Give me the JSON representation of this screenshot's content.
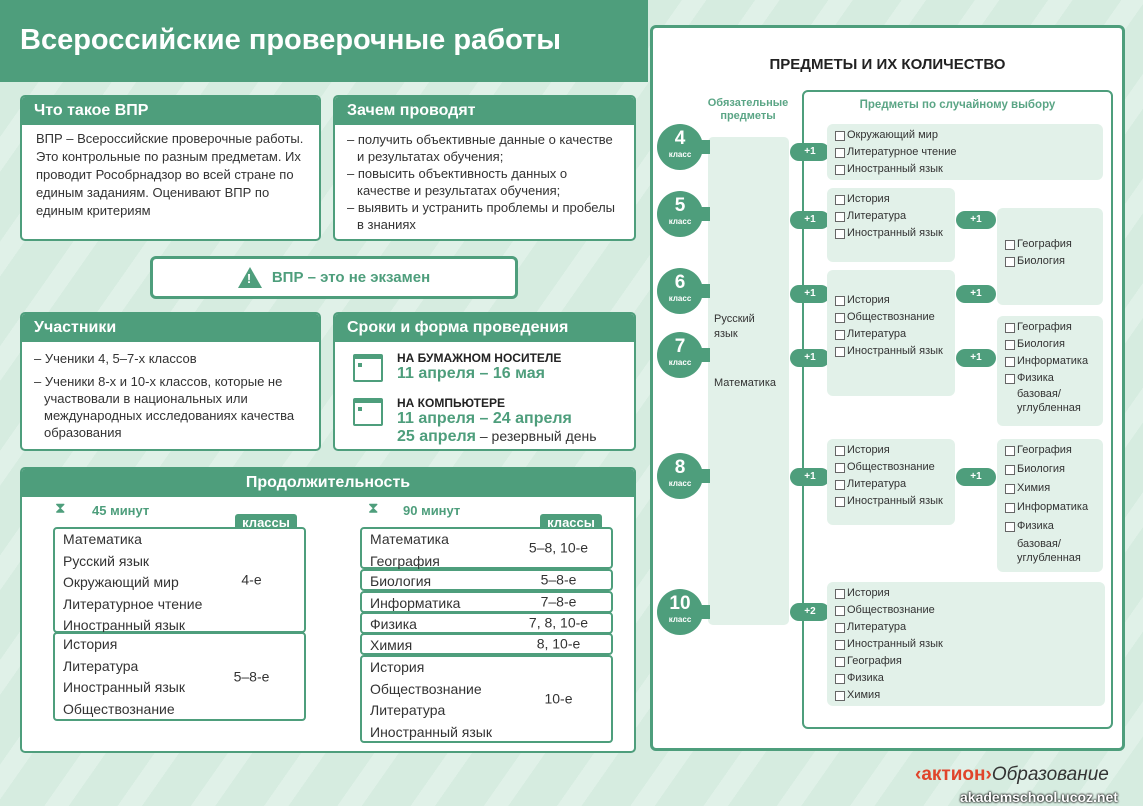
{
  "title": "Всероссийские проверочные работы",
  "what": {
    "heading": "Что такое ВПР",
    "text": "ВПР – Всероссийские проверочные работы. Это контрольные по разным предметам. Их проводит Рособрнадзор во всей стране по единым заданиям. Оценивают ВПР по единым критериям"
  },
  "why": {
    "heading": "Зачем проводят",
    "items": [
      "– получить объективные данные о качестве и результатах обучения;",
      "– повысить объективность данных о качестве и результатах обучения;",
      "– выявить и устранить проблемы и пробелы в знаниях"
    ]
  },
  "banner": {
    "icon": "warning-icon",
    "text": "ВПР – это не экзамен"
  },
  "participants": {
    "heading": "Участники",
    "items": [
      "– Ученики 4, 5–7-х классов",
      "– Ученики 8-х и 10-х классов, которые не участвовали в национальных или международных исследованиях качества образования"
    ]
  },
  "schedule": {
    "heading": "Сроки и форма проведения",
    "paper": {
      "label": "НА БУМАЖНОМ НОСИТЕЛЕ",
      "dates": "11 апреля – 16 мая"
    },
    "computer": {
      "label": "НА КОМПЬЮТЕРЕ",
      "dates": "11 апреля – 24 апреля",
      "reserve_date": "25 апреля",
      "reserve_note": " – резервный день"
    }
  },
  "duration": {
    "heading": "Продолжительность",
    "classes_label": "классы",
    "d45": {
      "label": "45 минут",
      "groups": [
        {
          "subjects": [
            "Математика",
            "Русский язык",
            "Окружающий мир",
            "Литературное чтение",
            "Иностранный язык"
          ],
          "grades": "4-е"
        },
        {
          "subjects": [
            "История",
            "Литература",
            "Иностранный язык",
            "Обществознание"
          ],
          "grades": "5–8-е"
        }
      ]
    },
    "d90": {
      "label": "90 минут",
      "groups": [
        {
          "subjects": [
            "Математика",
            "География"
          ],
          "grades": "5–8, 10-е"
        },
        {
          "subjects": [
            "Биология"
          ],
          "grades": "5–8-е"
        },
        {
          "subjects": [
            "Информатика"
          ],
          "grades": "7–8-е"
        },
        {
          "subjects": [
            "Физика"
          ],
          "grades": "7, 8, 10-е"
        },
        {
          "subjects": [
            "Химия"
          ],
          "grades": "8, 10-е"
        },
        {
          "subjects": [
            "История",
            "Обществознание",
            "Литература",
            "Иностранный язык"
          ],
          "grades": "10-е"
        }
      ]
    }
  },
  "subjects": {
    "title": "ПРЕДМЕТЫ И ИХ КОЛИЧЕСТВО",
    "mandatory_label": "Обязательные предметы",
    "random_label": "Предметы по случайному выбору",
    "mandatory": [
      "Русский язык",
      "Математика"
    ],
    "grades": [
      {
        "num": "4",
        "word": "класс"
      },
      {
        "num": "5",
        "word": "класс"
      },
      {
        "num": "6",
        "word": "класс"
      },
      {
        "num": "7",
        "word": "класс"
      },
      {
        "num": "8",
        "word": "класс"
      },
      {
        "num": "10",
        "word": "класс"
      }
    ],
    "plus": [
      "+1",
      "+1",
      "+1",
      "+1",
      "+1",
      "+2",
      "+1",
      "+1",
      "+1",
      "+1"
    ],
    "boxes": [
      {
        "items": [
          "Окружающий мир",
          "Литературное чтение",
          "Иностранный язык"
        ]
      },
      {
        "items": [
          "История",
          "Литература",
          "Иностранный язык"
        ]
      },
      {
        "items": [
          "География",
          "Биология"
        ]
      },
      {
        "items": [
          "История",
          "Обществознание",
          "Литература",
          "Иностранный язык"
        ]
      },
      {
        "items": [
          "География",
          "Биология",
          "Информатика",
          "Физика"
        ],
        "note": "базовая/ углубленная"
      },
      {
        "items": [
          "История",
          "Обществознание",
          "Литература",
          "Иностранный язык"
        ]
      },
      {
        "items": [
          "География",
          "Биология",
          "Химия",
          "Информатика",
          "Физика"
        ],
        "note": "базовая/ углубленная"
      },
      {
        "items": [
          "История",
          "Обществознание",
          "Литература",
          "Иностранный язык",
          "География",
          "Физика",
          "Химия"
        ]
      }
    ]
  },
  "footer": {
    "logo": "‹актион›",
    "logo_suffix": "Образование",
    "site": "akademschool.ucoz.net"
  },
  "colors": {
    "accent": "#4e9e7c",
    "background": "#d6ece0",
    "box": "#e2f1e9",
    "logo": "#e0452b"
  }
}
